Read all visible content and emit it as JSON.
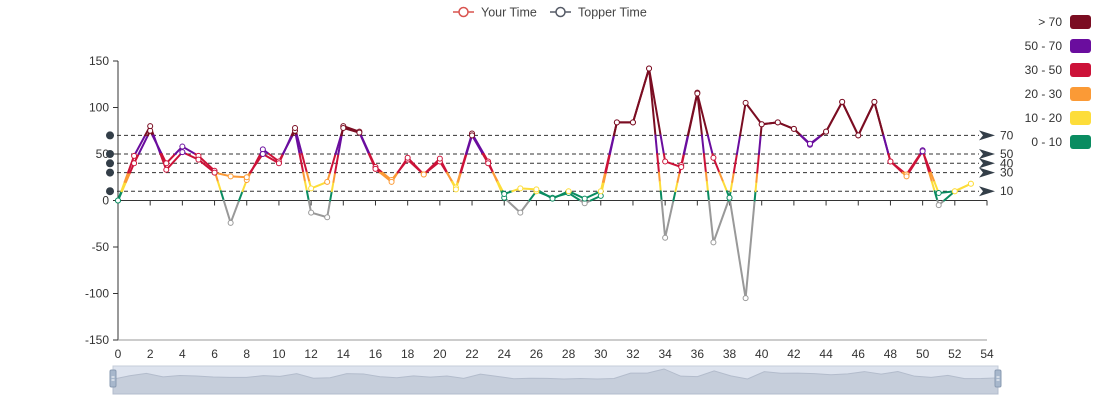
{
  "chart_data": {
    "type": "line",
    "title": "",
    "xlabel": "",
    "ylabel": "",
    "x": [
      0,
      1,
      2,
      3,
      4,
      5,
      6,
      7,
      8,
      9,
      10,
      11,
      12,
      13,
      14,
      15,
      16,
      17,
      18,
      19,
      20,
      21,
      22,
      23,
      24,
      25,
      26,
      27,
      28,
      29,
      30,
      31,
      32,
      33,
      34,
      35,
      36,
      37,
      38,
      39,
      40,
      41,
      42,
      43,
      44,
      45,
      46,
      47,
      48,
      49,
      50,
      51,
      52,
      53
    ],
    "xlim": [
      0,
      54
    ],
    "ylim": [
      -150,
      150
    ],
    "x_ticks": [
      "0",
      "2",
      "4",
      "6",
      "8",
      "10",
      "12",
      "14",
      "16",
      "18",
      "20",
      "22",
      "24",
      "26",
      "28",
      "30",
      "32",
      "34",
      "36",
      "38",
      "40",
      "42",
      "44",
      "46",
      "48",
      "50",
      "52",
      "54"
    ],
    "y_ticks": [
      "150",
      "100",
      "50",
      "0",
      "-50",
      "-100",
      "-150"
    ],
    "legend": {
      "position": "top-center",
      "series_labels": [
        "Your Time",
        "Topper Time"
      ]
    },
    "series": [
      {
        "name": "Your Time",
        "color": "#d9534f",
        "values": [
          0,
          48,
          80,
          33,
          52,
          44,
          30,
          26,
          25,
          50,
          40,
          78,
          13,
          20,
          78,
          73,
          34,
          20,
          46,
          28,
          45,
          12,
          70,
          40,
          7,
          13,
          12,
          2,
          10,
          2,
          10,
          84,
          84,
          142,
          42,
          36,
          115,
          46,
          3,
          105,
          82,
          84,
          77,
          61,
          74,
          106,
          70,
          106,
          42,
          26,
          53,
          8,
          10,
          18
        ]
      },
      {
        "name": "Topper Time",
        "color": "#555a66",
        "values": [
          0,
          40,
          75,
          40,
          58,
          48,
          32,
          -24,
          22,
          55,
          42,
          75,
          -13,
          -18,
          80,
          74,
          36,
          22,
          44,
          28,
          42,
          14,
          72,
          42,
          3,
          -13,
          10,
          3,
          8,
          -3,
          5,
          84,
          84,
          142,
          -40,
          38,
          116,
          -45,
          3,
          -105,
          82,
          84,
          77,
          60,
          74,
          106,
          70,
          106,
          42,
          28,
          54,
          -5,
          10,
          18
        ]
      }
    ],
    "visualMap": {
      "pieces": [
        {
          "label": "> 70",
          "color": "#7b0d22"
        },
        {
          "label": "50 - 70",
          "color": "#6a0d9e"
        },
        {
          "label": "30 - 50",
          "color": "#cc1238"
        },
        {
          "label": "20 - 30",
          "color": "#fb9a36"
        },
        {
          "label": "10 - 20",
          "color": "#fddd3a"
        },
        {
          "label": "0 - 10",
          "color": "#0a8c61"
        }
      ],
      "negative_color": "#999999"
    },
    "mark_lines": [
      {
        "value": 70,
        "label": "70"
      },
      {
        "value": 50,
        "label": "50"
      },
      {
        "value": 40,
        "label": "40"
      },
      {
        "value": 30,
        "label": "30"
      },
      {
        "value": 10,
        "label": "10"
      }
    ],
    "data_zoom": {
      "start_percent": 0,
      "end_percent": 100
    }
  }
}
